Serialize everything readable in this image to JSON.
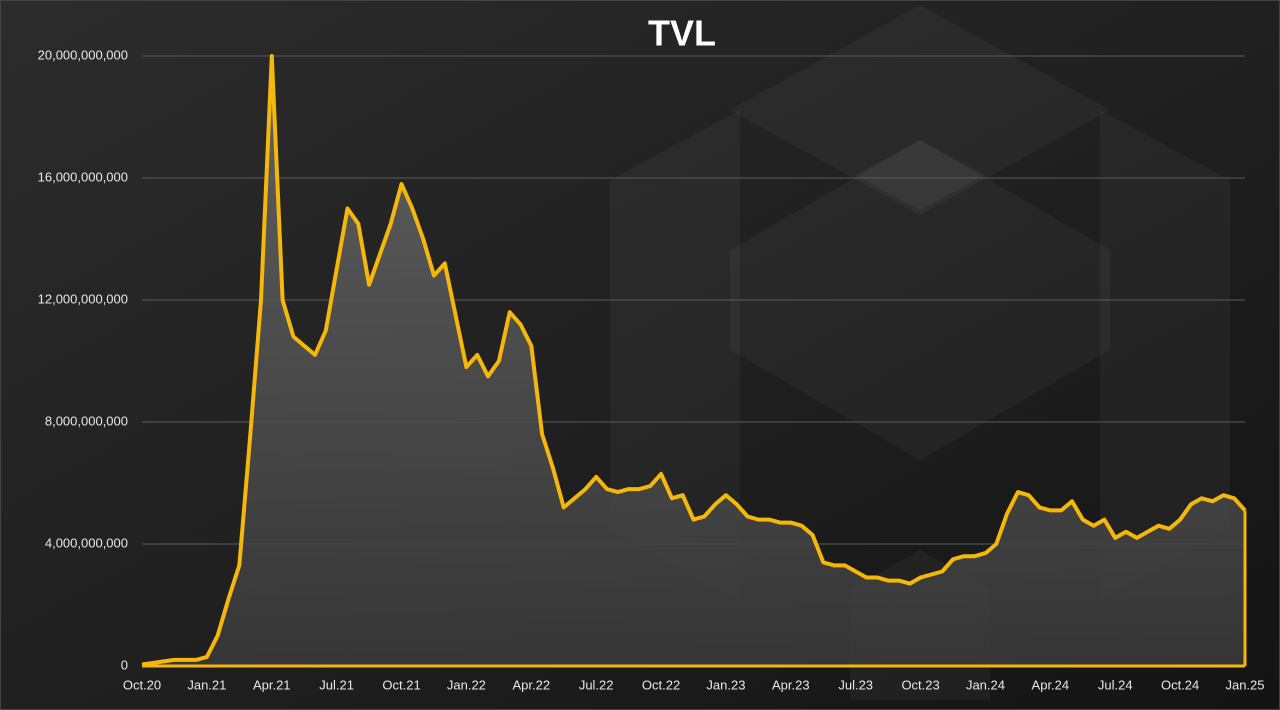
{
  "chart_data": {
    "type": "area",
    "title": "TVL",
    "color": "#f5b70a",
    "grid": true,
    "categories": [
      "Oct.20",
      null,
      null,
      null,
      null,
      null,
      "Jan.21",
      null,
      null,
      null,
      null,
      null,
      "Apr.21",
      null,
      null,
      null,
      null,
      null,
      "Jul.21",
      null,
      null,
      null,
      null,
      null,
      "Oct.21",
      null,
      null,
      null,
      null,
      null,
      "Jan.22",
      null,
      null,
      null,
      null,
      null,
      "Apr.22",
      null,
      null,
      null,
      null,
      null,
      "Jul.22",
      null,
      null,
      null,
      null,
      null,
      "Oct.22",
      null,
      null,
      null,
      null,
      null,
      "Jan.23",
      null,
      null,
      null,
      null,
      null,
      "Apr.23",
      null,
      null,
      null,
      null,
      null,
      "Jul.23",
      null,
      null,
      null,
      null,
      null,
      "Oct.23",
      null,
      null,
      null,
      null,
      null,
      "Jan.24",
      null,
      null,
      null,
      null,
      null,
      "Apr.24",
      null,
      null,
      null,
      null,
      null,
      "Jul.24",
      null,
      null,
      null,
      null,
      null,
      "Oct.24",
      null,
      null,
      null,
      null,
      null,
      "Jan.25"
    ],
    "values": [
      50000000.0,
      100000000.0,
      150000000.0,
      200000000.0,
      200000000.0,
      200000000.0,
      300000000.0,
      1000000000.0,
      2200000000.0,
      3300000000.0,
      7500000000.0,
      12000000000.0,
      20000000000.0,
      12000000000.0,
      10800000000.0,
      10500000000.0,
      10200000000.0,
      11000000000.0,
      13000000000.0,
      15000000000.0,
      14500000000.0,
      12500000000.0,
      13500000000.0,
      14500000000.0,
      15800000000.0,
      15000000000.0,
      14000000000.0,
      12800000000.0,
      13200000000.0,
      11500000000.0,
      9800000000.0,
      10200000000.0,
      9500000000.0,
      10000000000.0,
      11600000000.0,
      11200000000.0,
      10500000000.0,
      7600000000.0,
      6500000000.0,
      5200000000.0,
      5500000000.0,
      5800000000.0,
      6200000000.0,
      5800000000.0,
      5700000000.0,
      5800000000.0,
      5800000000.0,
      5900000000.0,
      6300000000.0,
      5500000000.0,
      5600000000.0,
      4800000000.0,
      4900000000.0,
      5300000000.0,
      5600000000.0,
      5300000000.0,
      4900000000.0,
      4800000000.0,
      4800000000.0,
      4700000000.0,
      4700000000.0,
      4600000000.0,
      4300000000.0,
      3400000000.0,
      3300000000.0,
      3300000000.0,
      3100000000.0,
      2900000000.0,
      2900000000.0,
      2800000000.0,
      2800000000.0,
      2700000000.0,
      2900000000.0,
      3000000000.0,
      3100000000.0,
      3500000000.0,
      3600000000.0,
      3600000000.0,
      3700000000.0,
      4000000000.0,
      5000000000.0,
      5700000000.0,
      5600000000.0,
      5200000000.0,
      5100000000.0,
      5100000000.0,
      5400000000.0,
      4800000000.0,
      4600000000.0,
      4800000000.0,
      4200000000.0,
      4400000000.0,
      4200000000.0,
      4400000000.0,
      4600000000.0,
      4500000000.0,
      4800000000.0,
      5300000000.0,
      5500000000.0,
      5400000000.0,
      5600000000.0,
      5500000000.0,
      5100000000.0
    ],
    "ylim": [
      0,
      20000000000
    ],
    "yticks": [
      0,
      {
        "value": 4000000000,
        "label": "4,000,000,000"
      },
      {
        "value": 8000000000,
        "label": "8,000,000,000"
      },
      {
        "value": 12000000000,
        "label": "12,000,000,000"
      },
      {
        "value": 16000000000,
        "label": "16,000,000,000"
      },
      {
        "value": 20000000000,
        "label": "20,000,000,000"
      }
    ]
  }
}
